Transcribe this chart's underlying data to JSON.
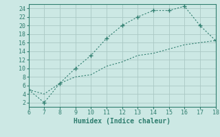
{
  "upper_x": [
    6,
    7,
    8,
    9,
    10,
    11,
    12,
    13,
    14,
    15,
    16,
    17,
    18
  ],
  "upper_y": [
    5,
    2,
    6.5,
    10,
    13,
    17,
    20,
    22,
    23.5,
    23.5,
    24.5,
    20,
    16.5
  ],
  "lower_x": [
    6,
    7,
    8,
    9,
    10,
    11,
    12,
    13,
    14,
    15,
    16,
    17,
    18
  ],
  "lower_y": [
    5,
    4,
    6.5,
    8.0,
    8.5,
    10.5,
    11.5,
    13.0,
    13.5,
    14.5,
    15.5,
    16.0,
    16.5
  ],
  "line_color": "#2e7d6e",
  "bg_color": "#cce8e4",
  "grid_color": "#aac8c4",
  "xlabel": "Humidex (Indice chaleur)",
  "xlim": [
    6,
    18
  ],
  "ylim": [
    1,
    25
  ],
  "xticks": [
    6,
    7,
    8,
    9,
    10,
    11,
    12,
    13,
    14,
    15,
    16,
    17,
    18
  ],
  "yticks": [
    2,
    4,
    6,
    8,
    10,
    12,
    14,
    16,
    18,
    20,
    22,
    24
  ],
  "marker": "+"
}
